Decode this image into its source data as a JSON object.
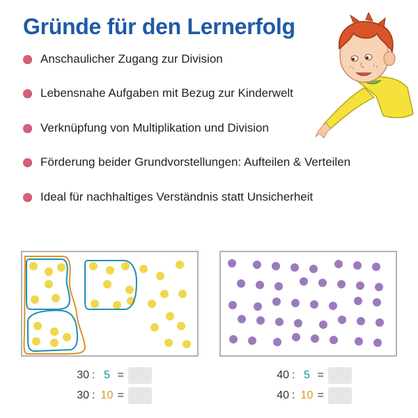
{
  "title": "Gründe für den Lernerfolg",
  "bullets": [
    "Anschaulicher Zugang zur Division",
    "Lebensnahe Aufgaben mit Bezug zur Kinderwelt",
    "Verknüpfung von Multiplikation und Division",
    "Förderung beider Grundvorstellungen: Aufteilen & Verteilen",
    "Ideal für nachhaltiges Verständnis statt Unsicherheit"
  ],
  "colors": {
    "title": "#1f5aa6",
    "bullet": "#d9607a",
    "yellow_dot": "#f2d64b",
    "purple_dot": "#9a7bbd",
    "group_blue": "#1f8fb3",
    "group_orange": "#e0922a",
    "divisor_blue": "#1f8fb3",
    "divisor_orange": "#e0922a"
  },
  "illustration": "boy-pointing",
  "left_panel": {
    "dot_count": 30,
    "equations": [
      {
        "dividend": "30",
        "operator": ":",
        "divisor": "5",
        "equals": "="
      },
      {
        "dividend": "30",
        "operator": ":",
        "divisor": "10",
        "equals": "="
      }
    ]
  },
  "right_panel": {
    "dot_count": 40,
    "equations": [
      {
        "dividend": "40",
        "operator": ":",
        "divisor": "5",
        "equals": "="
      },
      {
        "dividend": "40",
        "operator": ":",
        "divisor": "10",
        "equals": "="
      }
    ]
  }
}
